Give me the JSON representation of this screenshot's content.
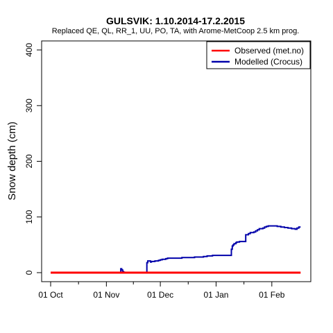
{
  "chart_data": {
    "type": "line",
    "title": "GULSVIK: 1.10.2014-17.2.2015",
    "subtitle": "Replaced QE, QL, RR_1, UU, PO, TA,  with Arome-MetCoop 2.5 km prog.",
    "xlabel": "",
    "ylabel": "Snow depth (cm)",
    "ylim": [
      0,
      400
    ],
    "yticks": [
      0,
      100,
      200,
      300,
      400
    ],
    "xlim_days": [
      -3,
      140
    ],
    "xticks": [
      {
        "label": "01 Oct",
        "day": 0
      },
      {
        "label": "01 Nov",
        "day": 31
      },
      {
        "label": "01 Dec",
        "day": 61
      },
      {
        "label": "01 Jan",
        "day": 92
      },
      {
        "label": "01 Feb",
        "day": 123
      }
    ],
    "legend_position": "top-right",
    "grid": false,
    "series": [
      {
        "name": "Observed (met.no)",
        "color": "#ff0000",
        "x": [
          0,
          139
        ],
        "y": [
          0,
          0
        ]
      },
      {
        "name": "Modelled (Crocus)",
        "color": "#0000aa",
        "x": [
          0,
          38,
          39,
          39.5,
          40,
          40.5,
          41,
          51,
          53,
          53.5,
          54,
          55.5,
          56,
          58,
          58.5,
          60,
          61,
          62,
          63,
          64,
          65,
          70,
          73,
          75,
          78,
          80,
          82,
          85,
          87,
          90,
          100,
          100.5,
          101,
          101.5,
          102,
          103,
          103.5,
          105,
          108,
          108.5,
          110,
          111,
          113,
          114,
          115,
          116,
          118,
          119,
          120,
          121,
          124,
          126,
          128,
          130,
          132,
          134,
          136,
          137,
          138,
          139
        ],
        "y": [
          0,
          0,
          7,
          5,
          2,
          1,
          0,
          0,
          0,
          18,
          21,
          19,
          20,
          21,
          21,
          22,
          23,
          24,
          24,
          25,
          26,
          26,
          27,
          27,
          27,
          28,
          28,
          29,
          30,
          31,
          31,
          42,
          48,
          50,
          52,
          54,
          55,
          56,
          56,
          68,
          70,
          72,
          73,
          75,
          77,
          79,
          80,
          82,
          83,
          84,
          84,
          83,
          82,
          81,
          80,
          79,
          78,
          80,
          82,
          82
        ]
      }
    ]
  }
}
